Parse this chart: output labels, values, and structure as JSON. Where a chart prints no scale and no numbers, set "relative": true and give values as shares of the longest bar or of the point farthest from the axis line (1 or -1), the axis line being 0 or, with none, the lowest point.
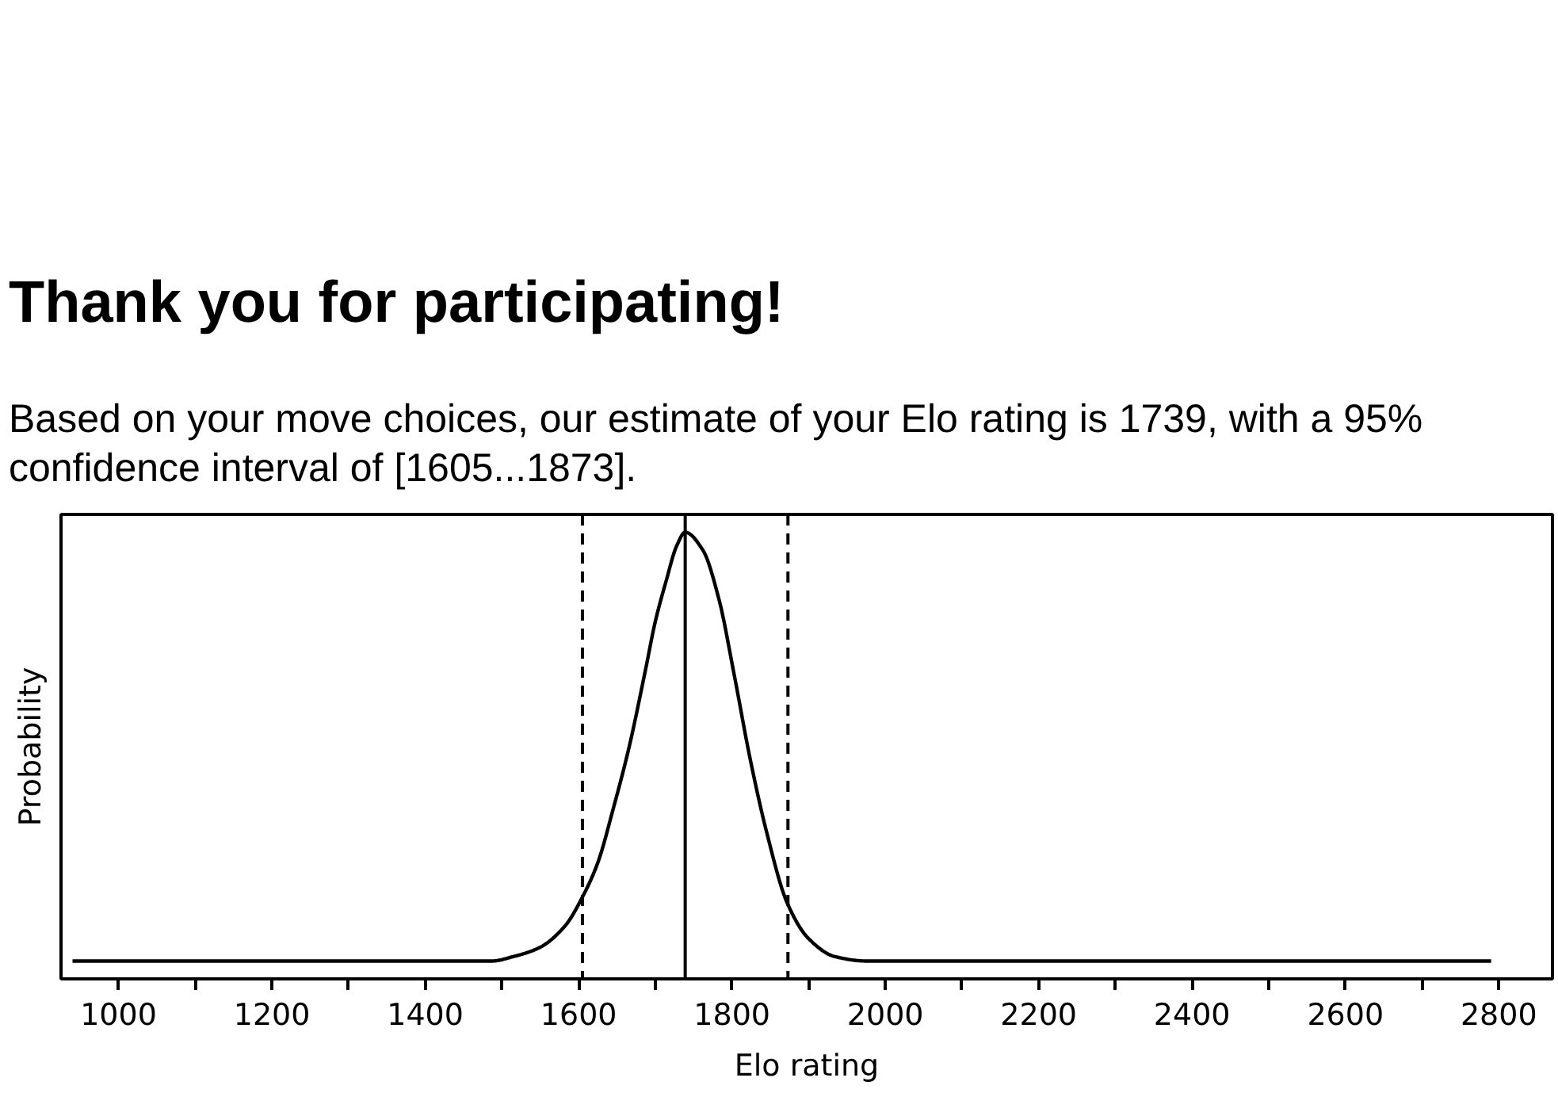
{
  "chart_data": {
    "type": "line",
    "title": "Thank you for participating!",
    "subtitle": "Based on your move choices, our estimate of your Elo rating is 1739, with a 95% confidence interval of [1605...1873].",
    "xlabel": "Elo rating",
    "ylabel": "Probability",
    "relative": true,
    "grid": false,
    "line_style": "solid",
    "x": [
      940,
      1487,
      1515,
      1549,
      1583,
      1604,
      1625,
      1645,
      1666,
      1687,
      1700,
      1714,
      1728,
      1739,
      1762,
      1783,
      1803,
      1824,
      1845,
      1872,
      1900,
      1934,
      1975,
      2790
    ],
    "series": [
      {
        "color": "#000000",
        "values": [
          0.04,
          0.04,
          0.05,
          0.07,
          0.12,
          0.18,
          0.26,
          0.38,
          0.52,
          0.69,
          0.8,
          0.89,
          0.97,
          1.0,
          0.96,
          0.85,
          0.68,
          0.49,
          0.33,
          0.17,
          0.09,
          0.05,
          0.04,
          0.04
        ]
      }
    ],
    "xlim": [
      925,
      2870
    ],
    "xticks": [
      1000,
      {
        "value": 1100,
        "label": null
      },
      1200,
      {
        "value": 1300,
        "label": null
      },
      1400,
      {
        "value": 1500,
        "label": null
      },
      1600,
      {
        "value": 1700,
        "label": null
      },
      1800,
      {
        "value": 1900,
        "label": null
      },
      2000,
      {
        "value": 2100,
        "label": null
      },
      2200,
      {
        "value": 2300,
        "label": null
      },
      2400,
      {
        "value": 2500,
        "label": null
      },
      2600,
      {
        "value": 2700,
        "label": null
      },
      2800
    ],
    "ref_lines": [
      {
        "axis": "x",
        "value": 1739,
        "color": "#000000",
        "line_style": "solid"
      },
      {
        "axis": "x",
        "value": 1605,
        "color": "#000000",
        "line_style": "dashed"
      },
      {
        "axis": "x",
        "value": 1873,
        "color": "#000000",
        "line_style": "dashed"
      }
    ]
  }
}
